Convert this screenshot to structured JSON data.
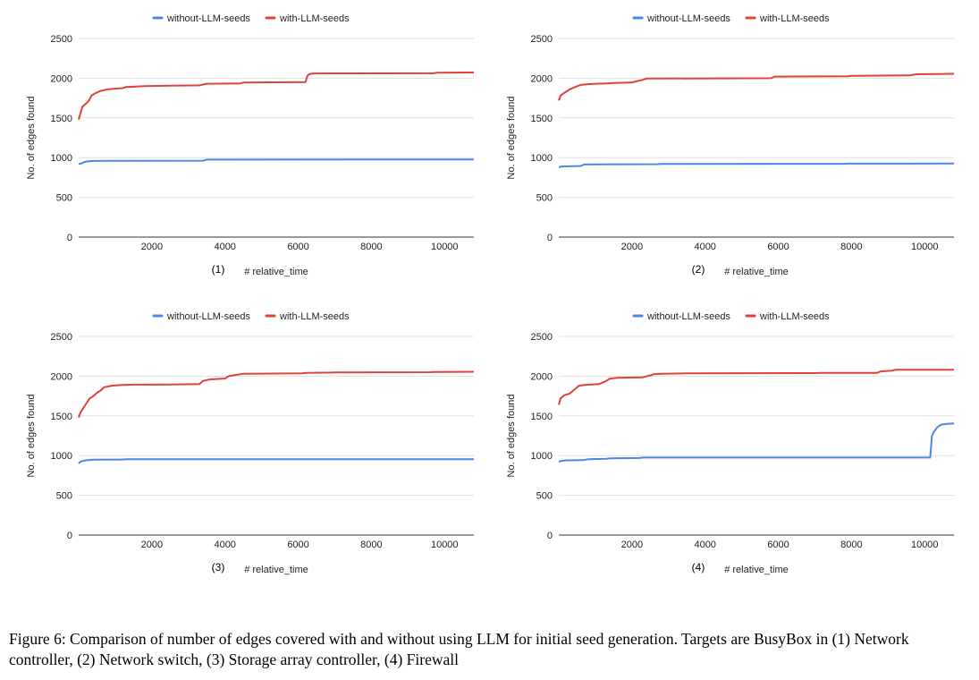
{
  "colors": {
    "without": "#4c87e8",
    "with": "#e0413a",
    "grid": "#e0e0e0",
    "axis": "#333333",
    "text": "#222222"
  },
  "caption": "Figure 6: Comparison of number of edges covered with and without using LLM for initial seed generation. Targets are BusyBox in (1) Network controller, (2) Network switch, (3) Storage array controller, (4) Firewall",
  "chart_data": [
    {
      "type": "line",
      "panel_label": "(1)",
      "xlabel": "# relative_time",
      "ylabel": "No. of edges found",
      "xlim": [
        0,
        10800
      ],
      "ylim": [
        0,
        2500
      ],
      "xticks": [
        2000,
        4000,
        6000,
        8000,
        10000
      ],
      "yticks": [
        0,
        500,
        1000,
        1500,
        2000,
        2500
      ],
      "legend": "top-center",
      "series": [
        {
          "name": "without-LLM-seeds",
          "x": [
            0,
            100,
            150,
            250,
            400,
            700,
            3400,
            3500,
            10800
          ],
          "y": [
            920,
            930,
            945,
            955,
            958,
            960,
            962,
            975,
            978
          ]
        },
        {
          "name": "with-LLM-seeds",
          "x": [
            0,
            50,
            100,
            200,
            280,
            350,
            450,
            600,
            800,
            1200,
            1300,
            1800,
            2500,
            3300,
            3400,
            3500,
            4400,
            4500,
            6200,
            6250,
            6300,
            6400,
            9700,
            9800,
            10800
          ],
          "y": [
            1480,
            1560,
            1640,
            1680,
            1720,
            1780,
            1810,
            1840,
            1860,
            1875,
            1890,
            1900,
            1905,
            1910,
            1920,
            1930,
            1935,
            1945,
            1950,
            2030,
            2050,
            2060,
            2062,
            2070,
            2072
          ]
        }
      ]
    },
    {
      "type": "line",
      "panel_label": "(2)",
      "xlabel": "# relative_time",
      "ylabel": "No. of edges found",
      "xlim": [
        0,
        10800
      ],
      "ylim": [
        0,
        2500
      ],
      "xticks": [
        2000,
        4000,
        6000,
        8000,
        10000
      ],
      "yticks": [
        0,
        500,
        1000,
        1500,
        2000,
        2500
      ],
      "legend": "top-center",
      "series": [
        {
          "name": "without-LLM-seeds",
          "x": [
            0,
            100,
            600,
            700,
            2700,
            2800,
            7800,
            7900,
            10800
          ],
          "y": [
            880,
            890,
            895,
            915,
            918,
            920,
            922,
            925,
            926
          ]
        },
        {
          "name": "with-LLM-seeds",
          "x": [
            0,
            50,
            100,
            200,
            300,
            400,
            500,
            600,
            800,
            1000,
            1300,
            1500,
            2000,
            2100,
            2300,
            2400,
            5800,
            5900,
            7900,
            8000,
            9600,
            9700,
            9800,
            10800
          ],
          "y": [
            1720,
            1780,
            1800,
            1830,
            1860,
            1880,
            1900,
            1915,
            1925,
            1930,
            1935,
            1940,
            1945,
            1960,
            1980,
            1995,
            2000,
            2020,
            2025,
            2030,
            2035,
            2045,
            2050,
            2055
          ]
        }
      ]
    },
    {
      "type": "line",
      "panel_label": "(3)",
      "xlabel": "# relative_time",
      "ylabel": "No. of edges found",
      "xlim": [
        0,
        10800
      ],
      "ylim": [
        0,
        2500
      ],
      "xticks": [
        2000,
        4000,
        6000,
        8000,
        10000
      ],
      "yticks": [
        0,
        500,
        1000,
        1500,
        2000,
        2500
      ],
      "legend": "top-center",
      "series": [
        {
          "name": "without-LLM-seeds",
          "x": [
            0,
            50,
            200,
            400,
            1200,
            1300,
            10800
          ],
          "y": [
            900,
            925,
            940,
            948,
            950,
            955,
            955
          ]
        },
        {
          "name": "with-LLM-seeds",
          "x": [
            0,
            50,
            100,
            200,
            300,
            400,
            500,
            600,
            700,
            900,
            1200,
            1500,
            2500,
            3300,
            3400,
            3600,
            4000,
            4100,
            4500,
            6100,
            6200,
            6900,
            7000,
            9600,
            9700,
            10800
          ],
          "y": [
            1480,
            1540,
            1580,
            1650,
            1720,
            1750,
            1790,
            1820,
            1860,
            1880,
            1890,
            1893,
            1895,
            1900,
            1940,
            1960,
            1970,
            2000,
            2030,
            2035,
            2040,
            2045,
            2047,
            2050,
            2052,
            2055
          ]
        }
      ]
    },
    {
      "type": "line",
      "panel_label": "(4)",
      "xlabel": "# relative_time",
      "ylabel": "No. of edges found",
      "xlim": [
        0,
        10800
      ],
      "ylim": [
        0,
        2500
      ],
      "xticks": [
        2000,
        4000,
        6000,
        8000,
        10000
      ],
      "yticks": [
        0,
        500,
        1000,
        1500,
        2000,
        2500
      ],
      "legend": "top-center",
      "series": [
        {
          "name": "without-LLM-seeds",
          "x": [
            0,
            100,
            200,
            700,
            800,
            1300,
            1400,
            2200,
            2300,
            10150,
            10200,
            10250,
            10350,
            10450,
            10600,
            10800
          ],
          "y": [
            925,
            935,
            940,
            945,
            955,
            960,
            965,
            970,
            975,
            975,
            1250,
            1300,
            1360,
            1390,
            1400,
            1405
          ]
        },
        {
          "name": "with-LLM-seeds",
          "x": [
            0,
            50,
            150,
            300,
            450,
            550,
            700,
            1100,
            1300,
            1400,
            1600,
            2300,
            2500,
            2600,
            2800,
            3500,
            7000,
            7100,
            8700,
            8800,
            9100,
            9200,
            10800
          ],
          "y": [
            1640,
            1720,
            1760,
            1780,
            1840,
            1880,
            1890,
            1900,
            1940,
            1970,
            1980,
            1985,
            2010,
            2025,
            2030,
            2035,
            2038,
            2040,
            2042,
            2060,
            2070,
            2080,
            2080
          ]
        }
      ]
    }
  ]
}
